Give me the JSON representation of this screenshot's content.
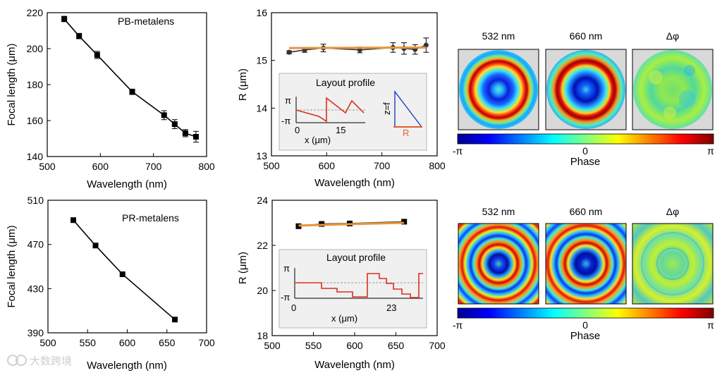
{
  "chart_data": [
    {
      "id": "focal-top",
      "type": "line",
      "xlabel": "Wavelength (nm)",
      "ylabel": "Focal length (μm)",
      "annotation": "PB-metalens",
      "xlim": [
        500,
        800
      ],
      "ylim": [
        140,
        220
      ],
      "xticks": [
        500,
        600,
        700,
        800
      ],
      "yticks": [
        140,
        160,
        180,
        200,
        220
      ],
      "series": [
        {
          "x": [
            532,
            560,
            594,
            660,
            720,
            740,
            760,
            780
          ],
          "y": [
            216.5,
            207,
            196.5,
            176,
            163,
            158,
            153,
            151
          ],
          "err": [
            1.5,
            1.5,
            2,
            1.5,
            2.5,
            2.5,
            2,
            3
          ],
          "marker": "square"
        }
      ]
    },
    {
      "id": "radius-top",
      "type": "line",
      "xlabel": "Wavelength (nm)",
      "ylabel": "R (μm)",
      "xlim": [
        500,
        800
      ],
      "ylim": [
        13,
        16
      ],
      "xticks": [
        500,
        600,
        700,
        800
      ],
      "yticks": [
        13,
        14,
        15,
        16
      ],
      "series": [
        {
          "x": [
            532,
            560,
            594,
            660,
            720,
            740,
            760,
            780
          ],
          "y": [
            15.17,
            15.22,
            15.26,
            15.22,
            15.27,
            15.25,
            15.23,
            15.32
          ],
          "err": [
            0.03,
            0.05,
            0.08,
            0.06,
            0.1,
            0.12,
            0.1,
            0.15
          ],
          "color": "#333333",
          "marker": "circle"
        },
        {
          "x": [
            532,
            780
          ],
          "y": [
            15.26,
            15.27
          ],
          "color": "#e8953a"
        }
      ]
    },
    {
      "id": "focal-bottom",
      "type": "line",
      "xlabel": "Wavelength (nm)",
      "ylabel": "Focal length (μm)",
      "annotation": "PR-metalens",
      "xlim": [
        500,
        700
      ],
      "ylim": [
        390,
        510
      ],
      "xticks": [
        500,
        550,
        600,
        650,
        700
      ],
      "yticks": [
        390,
        430,
        470,
        510
      ],
      "series": [
        {
          "x": [
            532,
            560,
            594,
            660
          ],
          "y": [
            492,
            469,
            443,
            402
          ],
          "marker": "square"
        }
      ]
    },
    {
      "id": "radius-bottom",
      "type": "line",
      "xlabel": "Wavelength (nm)",
      "ylabel": "R (μm)",
      "xlim": [
        500,
        700
      ],
      "ylim": [
        18,
        24
      ],
      "xticks": [
        500,
        550,
        600,
        650,
        700
      ],
      "yticks": [
        18,
        20,
        22,
        24
      ],
      "series": [
        {
          "x": [
            532,
            560,
            594,
            660
          ],
          "y": [
            22.85,
            22.95,
            22.97,
            23.05
          ],
          "color": "#333333",
          "marker": "square"
        },
        {
          "x": [
            532,
            660
          ],
          "y": [
            22.88,
            23.0
          ],
          "color": "#e8953a"
        }
      ]
    }
  ],
  "insets": {
    "title": "Layout profile",
    "pi": "π",
    "neg_pi": "-π",
    "top_xticks": [
      "0",
      "15"
    ],
    "bottom_xticks": [
      "0",
      "23"
    ],
    "xlabel": "x (μm)",
    "z_label": "z=f",
    "r_label": "R"
  },
  "phase_maps": {
    "labels": [
      "532 nm",
      "660 nm",
      "Δφ"
    ],
    "colorbar_label": "Phase",
    "colorbar_ticks": [
      "-π",
      "0",
      "π"
    ],
    "colormap": [
      "#00008f",
      "#0000ff",
      "#00ffff",
      "#ffff00",
      "#ff0000",
      "#800000"
    ]
  },
  "watermark": "大数跨境"
}
